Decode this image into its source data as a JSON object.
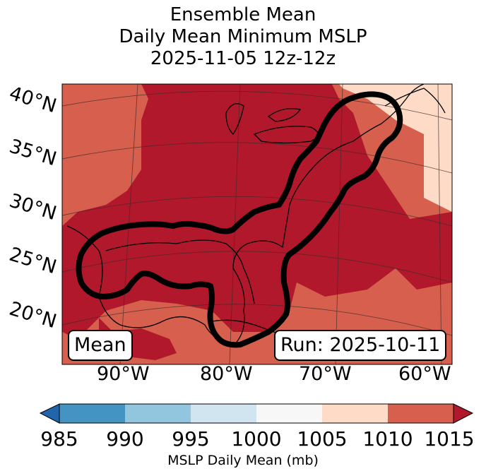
{
  "title": {
    "line1": "Ensemble Mean",
    "line2": "Daily Mean Minimum MSLP",
    "line3": "2025-11-05 12z-12z"
  },
  "map": {
    "lat_labels": [
      "40°N",
      "35°N",
      "30°N",
      "25°N",
      "20°N"
    ],
    "lon_labels": [
      "90°W",
      "80°W",
      "70°W",
      "60°W"
    ],
    "mean_box": "Mean",
    "run_box": "Run: 2025-10-11",
    "extent": {
      "lon": [
        -97,
        -59
      ],
      "lat": [
        17,
        42
      ]
    },
    "contour_level_mb": 1015,
    "field": {
      "dominant_bin": "1015",
      "interior_bin": "1015+",
      "outer_ne_bin": "1005–1010",
      "outer_bin": "1010–1015"
    }
  },
  "colorbar": {
    "ticks": [
      "985",
      "990",
      "995",
      "1000",
      "1005",
      "1010",
      "1015"
    ],
    "colors": [
      "#2166ac",
      "#4393c3",
      "#92c5de",
      "#d1e5f0",
      "#f7f7f7",
      "#fddbc7",
      "#d6604d",
      "#b2182b"
    ],
    "label": "MSLP Daily Mean (mb)"
  },
  "colors": {
    "low_pressure_fill": "#b2182b",
    "mid_fill": "#d6604d",
    "light_fill": "#fddbc7",
    "contour": "#000000"
  }
}
